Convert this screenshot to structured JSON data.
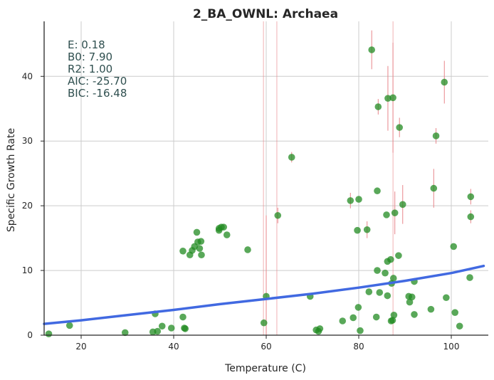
{
  "chart_data": {
    "type": "scatter",
    "title": "2_BA_OWNL: Archaea",
    "xlabel": "Temperature (C)",
    "ylabel": "Specific Growth Rate",
    "xlim": [
      12,
      108
    ],
    "ylim": [
      0,
      48.5
    ],
    "xticks": [
      20,
      40,
      60,
      80,
      100
    ],
    "yticks": [
      0,
      10,
      20,
      30,
      40
    ],
    "grid": true,
    "stats": [
      "E:  0.18",
      "B0:  7.90",
      "R2:  1.00",
      "AIC: -25.70",
      "BIC: -16.48"
    ],
    "colors": {
      "points": "#228b22",
      "fit": "#4169e1",
      "error_bars": "#e8868a",
      "stats_text": "#2f4f4f",
      "grid": "#cccccc"
    },
    "fit_curve": {
      "name": "",
      "x": [
        12,
        20,
        30,
        40,
        50,
        60,
        70,
        80,
        90,
        100,
        107
      ],
      "y": [
        1.75,
        2.3,
        3.1,
        3.9,
        4.8,
        5.6,
        6.4,
        7.35,
        8.4,
        9.6,
        10.7
      ]
    },
    "points": [
      {
        "x": 13,
        "y": 0.2
      },
      {
        "x": 17.5,
        "y": 1.5
      },
      {
        "x": 29.5,
        "y": 0.4
      },
      {
        "x": 35.5,
        "y": 0.5
      },
      {
        "x": 36,
        "y": 3.3
      },
      {
        "x": 36.5,
        "y": 0.6
      },
      {
        "x": 37.5,
        "y": 1.4
      },
      {
        "x": 39.5,
        "y": 1.1
      },
      {
        "x": 42,
        "y": 2.8
      },
      {
        "x": 42.5,
        "y": 1.0
      },
      {
        "x": 42.3,
        "y": 1.1
      },
      {
        "x": 42,
        "y": 13.0
      },
      {
        "x": 43.5,
        "y": 12.4
      },
      {
        "x": 44,
        "y": 13.1
      },
      {
        "x": 44.5,
        "y": 13.7
      },
      {
        "x": 45,
        "y": 15.9
      },
      {
        "x": 45.2,
        "y": 14.4
      },
      {
        "x": 45.6,
        "y": 13.4
      },
      {
        "x": 45.9,
        "y": 14.5
      },
      {
        "x": 46,
        "y": 12.4
      },
      {
        "x": 49.8,
        "y": 16.5
      },
      {
        "x": 49.8,
        "y": 16.2
      },
      {
        "x": 50.3,
        "y": 16.7
      },
      {
        "x": 50.8,
        "y": 16.7
      },
      {
        "x": 51.5,
        "y": 15.5
      },
      {
        "x": 56,
        "y": 13.2
      },
      {
        "x": 59.5,
        "y": 1.9
      },
      {
        "x": 60,
        "y": 6.0,
        "yerr": 12.5
      },
      {
        "x": 62.5,
        "y": 18.5,
        "yerr": 1.2
      },
      {
        "x": 65.5,
        "y": 27.5,
        "yerr": 0.8
      },
      {
        "x": 69.5,
        "y": 6.0
      },
      {
        "x": 70.8,
        "y": 0.8
      },
      {
        "x": 71.3,
        "y": 0.6
      },
      {
        "x": 71.6,
        "y": 1.0
      },
      {
        "x": 76.5,
        "y": 2.2
      },
      {
        "x": 78.2,
        "y": 20.8,
        "yerr": 1.2
      },
      {
        "x": 78.8,
        "y": 2.7
      },
      {
        "x": 79.7,
        "y": 16.2
      },
      {
        "x": 79.9,
        "y": 4.3
      },
      {
        "x": 80,
        "y": 21.0
      },
      {
        "x": 80.3,
        "y": 0.7
      },
      {
        "x": 81.8,
        "y": 16.3,
        "yerr": 1.3
      },
      {
        "x": 82.2,
        "y": 6.7
      },
      {
        "x": 82.8,
        "y": 44.1,
        "yerr": 3.0
      },
      {
        "x": 83.8,
        "y": 2.8
      },
      {
        "x": 84,
        "y": 10.0
      },
      {
        "x": 84,
        "y": 22.3
      },
      {
        "x": 84.2,
        "y": 35.3,
        "yerr": 1.2
      },
      {
        "x": 84.5,
        "y": 6.6
      },
      {
        "x": 85.7,
        "y": 9.6
      },
      {
        "x": 86,
        "y": 18.6
      },
      {
        "x": 86.2,
        "y": 11.4
      },
      {
        "x": 86.2,
        "y": 6.1
      },
      {
        "x": 86.3,
        "y": 36.6,
        "yerr": 5.0
      },
      {
        "x": 86.9,
        "y": 11.7
      },
      {
        "x": 87,
        "y": 2.2
      },
      {
        "x": 87.1,
        "y": 8.0
      },
      {
        "x": 87.3,
        "y": 2.3
      },
      {
        "x": 87.4,
        "y": 36.7,
        "yerr": 8.5
      },
      {
        "x": 87.5,
        "y": 8.8
      },
      {
        "x": 87.6,
        "y": 3.1
      },
      {
        "x": 87.8,
        "y": 18.9,
        "yerr": 3.3
      },
      {
        "x": 88.6,
        "y": 12.3
      },
      {
        "x": 88.8,
        "y": 32.1,
        "yerr": 1.5
      },
      {
        "x": 89.5,
        "y": 20.2,
        "yerr": 3.0
      },
      {
        "x": 90.8,
        "y": 6.0
      },
      {
        "x": 91,
        "y": 5.1
      },
      {
        "x": 91.5,
        "y": 5.9
      },
      {
        "x": 92,
        "y": 3.2
      },
      {
        "x": 92,
        "y": 8.3
      },
      {
        "x": 95.6,
        "y": 4.0
      },
      {
        "x": 96.2,
        "y": 22.7,
        "yerr": 3.0
      },
      {
        "x": 96.7,
        "y": 30.8,
        "yerr": 1.2
      },
      {
        "x": 98.5,
        "y": 39.1,
        "yerr": 3.3
      },
      {
        "x": 98.9,
        "y": 5.8
      },
      {
        "x": 100.5,
        "y": 13.7
      },
      {
        "x": 100.8,
        "y": 3.5
      },
      {
        "x": 101.8,
        "y": 1.4
      },
      {
        "x": 104,
        "y": 8.9
      },
      {
        "x": 104.2,
        "y": 21.4,
        "yerr": 1.2
      },
      {
        "x": 104.2,
        "y": 18.3,
        "yerr": 1.0
      }
    ]
  }
}
